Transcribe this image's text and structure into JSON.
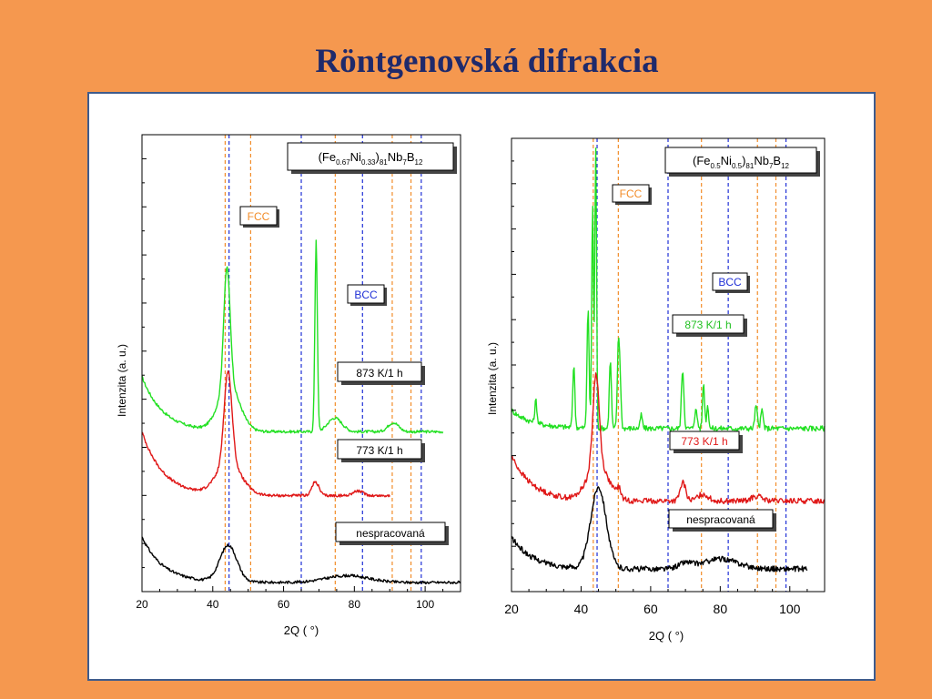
{
  "slide": {
    "title": "Röntgenovská  difrakcia"
  },
  "colors": {
    "background": "#f5984f",
    "frame_border": "#3e5b8c",
    "fcc_line": "#f28c28",
    "bcc_line": "#1f2fd6",
    "green": "#22e022",
    "red": "#e01818",
    "black": "#000000"
  },
  "chart_data": [
    {
      "type": "line",
      "composition": {
        "base": "(Fe",
        "s1": "0.67",
        "m1": "Ni",
        "s2": "0.33",
        "m2": ")",
        "s3": "81",
        "m3": "Nb",
        "s4": "7",
        "m4": "B",
        "s5": "12"
      },
      "xlabel": "2Q ( °)",
      "ylabel": "Intenzita (a. u.)",
      "xlim": [
        20,
        110
      ],
      "xticks": [
        "20",
        "40",
        "60",
        "80",
        "100"
      ],
      "fcc_label": "FCC",
      "bcc_label": "BCC",
      "fcc_positions": [
        43.5,
        50.7,
        74.6,
        90.7,
        96.0
      ],
      "bcc_positions": [
        44.6,
        65.0,
        82.3,
        98.9
      ],
      "series": [
        {
          "name": "873 K/1 h",
          "color": "green",
          "x_end": 105,
          "baseline": 0.35,
          "bg_rise": 0.12,
          "peaks": [
            [
              44.0,
              0.26,
              0.9
            ],
            [
              44.6,
              0.1,
              3.0
            ],
            [
              69.2,
              0.42,
              0.35
            ],
            [
              74.5,
              0.03,
              2.0
            ],
            [
              91.0,
              0.02,
              1.5
            ]
          ]
        },
        {
          "name": "773 K/1 h",
          "color": "red",
          "x_end": 90,
          "baseline": 0.21,
          "bg_rise": 0.14,
          "peaks": [
            [
              44.3,
              0.2,
              1.1
            ],
            [
              44.6,
              0.07,
              3.5
            ],
            [
              69.0,
              0.03,
              1.0
            ],
            [
              81.0,
              0.01,
              1.5
            ]
          ]
        },
        {
          "name": "nespracovaná",
          "color": "black",
          "x_end": 110,
          "baseline": 0.02,
          "bg_rise": 0.1,
          "peaks": [
            [
              44.4,
              0.08,
              2.4
            ],
            [
              78.0,
              0.015,
              6.0
            ]
          ]
        }
      ]
    },
    {
      "type": "line",
      "composition": {
        "base": "(Fe",
        "s1": "0.5",
        "m1": "Ni",
        "s2": "0.5",
        "m2": ")",
        "s3": "81",
        "m3": "Nb",
        "s4": "7",
        "m4": "B",
        "s5": "12"
      },
      "xlabel": "2Q ( °)",
      "ylabel": "Intenzita (a. u.)",
      "xlim": [
        20,
        110
      ],
      "xticks": [
        "20",
        "40",
        "60",
        "80",
        "100"
      ],
      "fcc_label": "FCC",
      "bcc_label": "BCC",
      "fcc_positions": [
        43.5,
        50.7,
        74.6,
        90.7,
        96.0
      ],
      "bcc_positions": [
        44.6,
        65.0,
        82.3,
        98.9
      ],
      "series": [
        {
          "name": "873 K/1 h",
          "color": "green",
          "x_end": 110,
          "baseline": 0.36,
          "bg_rise": 0.04,
          "peaks": [
            [
              27.0,
              0.05,
              0.3
            ],
            [
              37.9,
              0.14,
              0.3
            ],
            [
              42.0,
              0.26,
              0.3
            ],
            [
              43.3,
              0.5,
              0.25
            ],
            [
              44.2,
              0.62,
              0.25
            ],
            [
              48.4,
              0.15,
              0.3
            ],
            [
              50.7,
              0.17,
              0.3
            ],
            [
              51.2,
              0.1,
              0.3
            ],
            [
              57.3,
              0.03,
              0.3
            ],
            [
              69.2,
              0.13,
              0.35
            ],
            [
              73.0,
              0.04,
              0.4
            ],
            [
              75.2,
              0.1,
              0.3
            ],
            [
              76.4,
              0.05,
              0.3
            ],
            [
              90.3,
              0.05,
              0.35
            ],
            [
              92.0,
              0.04,
              0.35
            ]
          ]
        },
        {
          "name": "773 K/1 h",
          "color": "red",
          "x_end": 110,
          "baseline": 0.2,
          "bg_rise": 0.1,
          "peaks": [
            [
              44.3,
              0.2,
              0.9
            ],
            [
              44.8,
              0.08,
              3.0
            ],
            [
              50.8,
              0.02,
              0.6
            ],
            [
              69.3,
              0.04,
              0.8
            ],
            [
              75.0,
              0.015,
              1.5
            ],
            [
              90.5,
              0.01,
              1.5
            ]
          ]
        },
        {
          "name": "nespracovaná",
          "color": "black",
          "x_end": 105,
          "baseline": 0.05,
          "bg_rise": 0.07,
          "peaks": [
            [
              45.0,
              0.18,
              2.2
            ],
            [
              70.0,
              0.012,
              2.0
            ],
            [
              80.0,
              0.022,
              5.0
            ]
          ]
        }
      ]
    }
  ]
}
